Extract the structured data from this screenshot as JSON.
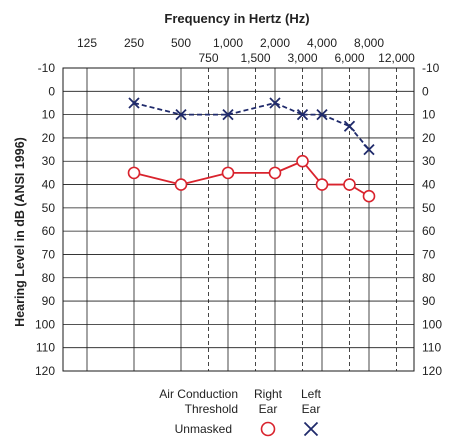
{
  "chart_data": {
    "type": "audiogram",
    "title": "Frequency in Hertz (Hz)",
    "ylabel": "Hearing Level in dB (ANSI 1996)",
    "xscale": "log",
    "ylim": [
      -10,
      120
    ],
    "y_inverted": true,
    "yticks": [
      -10,
      0,
      10,
      20,
      30,
      40,
      50,
      60,
      70,
      80,
      90,
      100,
      110,
      120
    ],
    "octave_ticks": [
      {
        "freq": 125,
        "label": "125"
      },
      {
        "freq": 250,
        "label": "250"
      },
      {
        "freq": 500,
        "label": "500"
      },
      {
        "freq": 1000,
        "label": "1,000"
      },
      {
        "freq": 2000,
        "label": "2,000"
      },
      {
        "freq": 4000,
        "label": "4,000"
      },
      {
        "freq": 8000,
        "label": "8,000"
      }
    ],
    "interoctave_ticks": [
      {
        "freq": 750,
        "label": "750"
      },
      {
        "freq": 1500,
        "label": "1,500"
      },
      {
        "freq": 3000,
        "label": "3,000"
      },
      {
        "freq": 6000,
        "label": "6,000"
      },
      {
        "freq": 12000,
        "label": "12,000"
      }
    ],
    "series": [
      {
        "name": "Right Ear",
        "marker": "circle",
        "color": "#d9232d",
        "points": [
          {
            "x": 250,
            "y": 35
          },
          {
            "x": 500,
            "y": 40
          },
          {
            "x": 1000,
            "y": 35
          },
          {
            "x": 2000,
            "y": 35
          },
          {
            "x": 3000,
            "y": 30
          },
          {
            "x": 4000,
            "y": 40
          },
          {
            "x": 6000,
            "y": 40
          },
          {
            "x": 8000,
            "y": 45
          }
        ]
      },
      {
        "name": "Left Ear",
        "marker": "x",
        "color": "#1f2a6b",
        "points": [
          {
            "x": 250,
            "y": 5
          },
          {
            "x": 500,
            "y": 10
          },
          {
            "x": 1000,
            "y": 10
          },
          {
            "x": 2000,
            "y": 5
          },
          {
            "x": 3000,
            "y": 10
          },
          {
            "x": 4000,
            "y": 10
          },
          {
            "x": 6000,
            "y": 15
          },
          {
            "x": 8000,
            "y": 25
          }
        ]
      }
    ]
  },
  "legend": {
    "header_line1": "Air Conduction",
    "header_line2": "Threshold",
    "right_line1": "Right",
    "right_line2": "Ear",
    "left_line1": "Left",
    "left_line2": "Ear",
    "row_label": "Unmasked"
  }
}
